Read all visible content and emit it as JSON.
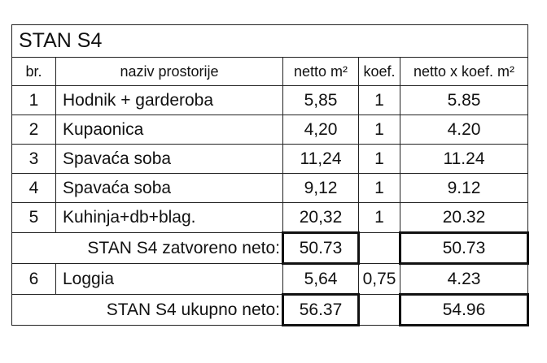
{
  "title": "STAN S4",
  "headers": {
    "br": "br.",
    "naziv": "naziv prostorije",
    "netto": "netto m²",
    "koef": "koef.",
    "netto_koef": "netto x koef. m²"
  },
  "rows": [
    {
      "br": "1",
      "naziv": "Hodnik + garderoba",
      "netto": "5,85",
      "koef": "1",
      "netto_koef": "5.85"
    },
    {
      "br": "2",
      "naziv": "Kupaonica",
      "netto": "4,20",
      "koef": "1",
      "netto_koef": "4.20"
    },
    {
      "br": "3",
      "naziv": "Spavaća soba",
      "netto": "11,24",
      "koef": "1",
      "netto_koef": "11.24"
    },
    {
      "br": "4",
      "naziv": "Spavaća soba",
      "netto": "9,12",
      "koef": "1",
      "netto_koef": "9.12"
    },
    {
      "br": "5",
      "naziv": "Kuhinja+db+blag.",
      "netto": "20,32",
      "koef": "1",
      "netto_koef": "20.32"
    }
  ],
  "subtotal": {
    "label": "STAN S4 zatvoreno neto:",
    "netto": "50.73",
    "netto_koef": "50.73"
  },
  "loggia": {
    "br": "6",
    "naziv": "Loggia",
    "netto": "5,64",
    "koef": "0,75",
    "netto_koef": "4.23"
  },
  "total": {
    "label": "STAN S4 ukupno neto:",
    "netto": "56.37",
    "netto_koef": "54.96"
  }
}
